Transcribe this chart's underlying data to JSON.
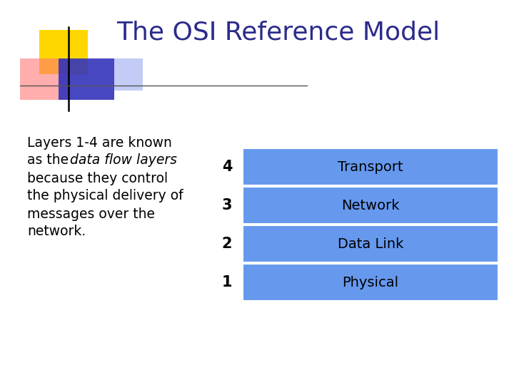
{
  "title": "The OSI Reference Model",
  "title_color": "#2B2B8C",
  "title_fontsize": 26,
  "background_color": "#FFFFFF",
  "body_fontsize": 13.5,
  "layers": [
    {
      "number": "4",
      "label": "Transport"
    },
    {
      "number": "3",
      "label": "Network"
    },
    {
      "number": "2",
      "label": "Data Link"
    },
    {
      "number": "1",
      "label": "Physical"
    }
  ],
  "layer_box_color": "#6699EE",
  "layer_text_color": "#000000",
  "layer_fontsize": 14,
  "number_fontsize": 15,
  "logo_yellow": "#FFD700",
  "logo_red": "#FF7777",
  "logo_blue": "#3333BB",
  "logo_blue_fade": "#8899EE",
  "line_color": "#555555"
}
